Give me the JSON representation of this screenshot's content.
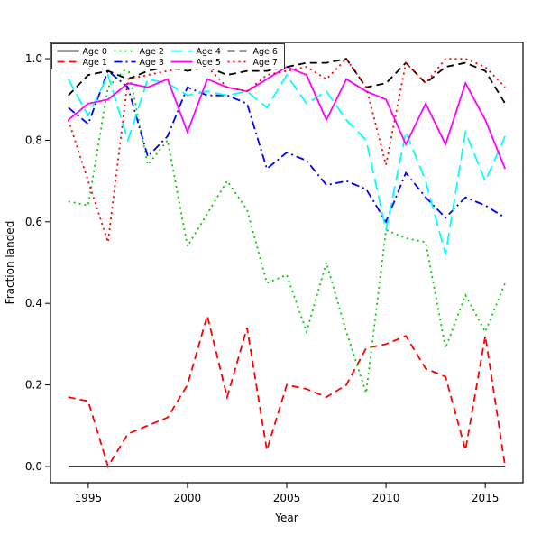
{
  "figure": {
    "background": "#FFFFFF"
  },
  "chart_data": {
    "type": "line",
    "title": "",
    "xlabel": "Year",
    "ylabel": "Fraction landed",
    "grid": false,
    "legend_position": "top-left",
    "xlim": [
      1993.1,
      2016.9
    ],
    "ylim": [
      -0.04,
      1.04
    ],
    "x_ticks": [
      1995,
      2000,
      2005,
      2010,
      2015
    ],
    "x_tick_labels": [
      "1995",
      "2000",
      "2005",
      "2010",
      "2015"
    ],
    "y_ticks": [
      0.0,
      0.2,
      0.4,
      0.6,
      0.8,
      1.0
    ],
    "y_tick_labels": [
      "0.0",
      "0.2",
      "0.4",
      "0.6",
      "0.8",
      "1.0"
    ],
    "x": [
      1994,
      1995,
      1996,
      1997,
      1998,
      1999,
      2000,
      2001,
      2002,
      2003,
      2004,
      2005,
      2006,
      2007,
      2008,
      2009,
      2010,
      2011,
      2012,
      2013,
      2014,
      2015,
      2016
    ],
    "series": [
      {
        "name": "Age 0",
        "color": "#000000",
        "linestyle": "solid",
        "values": [
          0,
          0,
          0,
          0,
          0,
          0,
          0,
          0,
          0,
          0,
          0,
          0,
          0,
          0,
          0,
          0,
          0,
          0,
          0,
          0,
          0,
          0,
          0
        ]
      },
      {
        "name": "Age 1",
        "color": "#FF0000",
        "linestyle": "dashed",
        "values": [
          0.17,
          0.16,
          0.0,
          0.08,
          0.1,
          0.12,
          0.2,
          0.37,
          0.17,
          0.34,
          0.04,
          0.2,
          0.19,
          0.17,
          0.2,
          0.29,
          0.3,
          0.32,
          0.24,
          0.22,
          0.04,
          0.32,
          0.0
        ]
      },
      {
        "name": "Age 2",
        "color": "#00CD00",
        "linestyle": "dotted",
        "values": [
          0.65,
          0.64,
          0.93,
          0.98,
          0.74,
          0.8,
          0.54,
          0.62,
          0.7,
          0.63,
          0.45,
          0.47,
          0.33,
          0.5,
          0.33,
          0.18,
          0.58,
          0.56,
          0.55,
          0.29,
          0.42,
          0.33,
          0.45
        ]
      },
      {
        "name": "Age 3",
        "color": "#0000FF",
        "linestyle": "dashdot",
        "values": [
          0.88,
          0.84,
          0.97,
          0.93,
          0.76,
          0.81,
          0.93,
          0.91,
          0.91,
          0.89,
          0.73,
          0.77,
          0.75,
          0.69,
          0.7,
          0.68,
          0.6,
          0.72,
          0.66,
          0.61,
          0.66,
          0.64,
          0.61
        ]
      },
      {
        "name": "Age 4",
        "color": "#00FFFF",
        "linestyle": "longdash",
        "values": [
          0.95,
          0.86,
          0.96,
          0.8,
          0.95,
          0.94,
          0.91,
          0.92,
          0.91,
          0.92,
          0.88,
          0.96,
          0.89,
          0.92,
          0.85,
          0.8,
          0.58,
          0.82,
          0.7,
          0.52,
          0.82,
          0.7,
          0.81
        ]
      },
      {
        "name": "Age 5",
        "color": "#FF00FF",
        "linestyle": "solid",
        "values": [
          0.85,
          0.89,
          0.9,
          0.94,
          0.93,
          0.95,
          0.82,
          0.95,
          0.93,
          0.92,
          0.95,
          0.98,
          0.96,
          0.85,
          0.95,
          0.92,
          0.9,
          0.79,
          0.89,
          0.79,
          0.94,
          0.85,
          0.73
        ]
      },
      {
        "name": "Age 6",
        "color": "#000000",
        "linestyle": "dashed",
        "values": [
          0.91,
          0.96,
          0.97,
          0.95,
          0.97,
          0.98,
          0.97,
          0.98,
          0.96,
          0.97,
          0.97,
          0.98,
          0.99,
          0.99,
          1.0,
          0.93,
          0.94,
          0.99,
          0.94,
          0.98,
          0.99,
          0.97,
          0.89
        ]
      },
      {
        "name": "Age 7",
        "color": "#FF0000",
        "linestyle": "dotted",
        "values": [
          0.85,
          0.7,
          0.55,
          0.95,
          0.96,
          0.97,
          0.98,
          0.98,
          0.93,
          0.92,
          0.96,
          0.97,
          0.98,
          0.95,
          1.0,
          0.93,
          0.74,
          0.99,
          0.94,
          1.0,
          1.0,
          0.98,
          0.93
        ]
      }
    ]
  }
}
